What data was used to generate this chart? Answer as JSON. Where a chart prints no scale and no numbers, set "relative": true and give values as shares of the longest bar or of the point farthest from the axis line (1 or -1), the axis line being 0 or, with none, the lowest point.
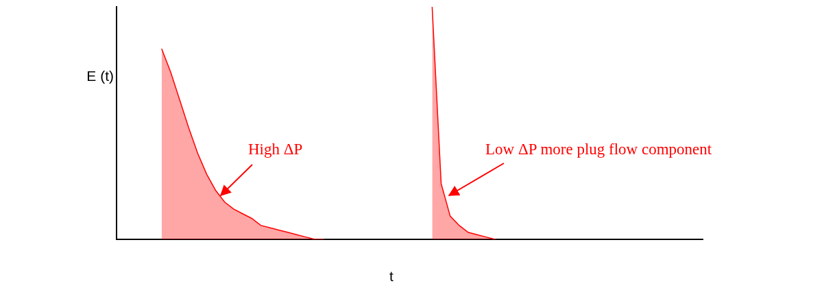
{
  "chart_data": {
    "type": "area",
    "relative": true,
    "xlabel": "t",
    "ylabel": "E (t)",
    "categories": [
      null,
      null,
      null,
      null,
      null,
      null,
      null,
      null,
      null,
      null,
      null,
      null,
      null,
      null,
      null,
      null,
      null,
      null,
      null,
      null,
      null,
      null,
      null,
      null,
      null,
      null,
      null,
      null,
      null,
      null,
      null,
      null,
      null,
      null,
      null,
      null,
      null,
      null,
      null,
      null,
      null,
      null,
      null,
      null,
      null,
      null,
      null,
      null,
      null,
      null,
      null,
      null,
      null,
      null,
      null,
      null,
      null,
      null,
      null,
      null,
      null,
      null,
      null,
      null,
      null,
      null
    ],
    "series": [
      {
        "color": "#ff0000",
        "values": [
          null,
          null,
          null,
          null,
          null,
          0.82,
          0.72,
          0.6,
          0.48,
          0.37,
          0.28,
          0.21,
          0.16,
          0.13,
          0.11,
          0.09,
          0.06,
          0.05,
          0.04,
          0.03,
          0.02,
          0.01,
          0,
          0,
          null,
          null,
          null,
          null,
          null,
          null,
          null,
          null,
          null,
          null,
          null,
          null,
          null,
          null,
          null,
          null,
          null,
          null,
          null,
          null,
          null,
          null,
          null,
          null,
          null,
          null,
          null,
          null,
          null,
          null,
          null,
          null,
          null,
          null,
          null,
          null,
          null,
          null,
          null,
          null,
          null,
          null
        ]
      },
      {
        "color": "#ff0000",
        "values": [
          null,
          null,
          null,
          null,
          null,
          null,
          null,
          null,
          null,
          null,
          null,
          null,
          null,
          null,
          null,
          null,
          null,
          null,
          null,
          null,
          null,
          null,
          null,
          null,
          null,
          null,
          null,
          null,
          null,
          null,
          null,
          null,
          null,
          null,
          null,
          1,
          0.24,
          0.1,
          0.06,
          0.03,
          0.02,
          0.01,
          0,
          null,
          null,
          null,
          null,
          null,
          null,
          null,
          null,
          null,
          null,
          null,
          null,
          null,
          null,
          null,
          null,
          null,
          null,
          null,
          null,
          null,
          null,
          null
        ]
      }
    ],
    "annotations": [
      "High ΔP",
      "Low ΔP more plug flow component"
    ]
  }
}
